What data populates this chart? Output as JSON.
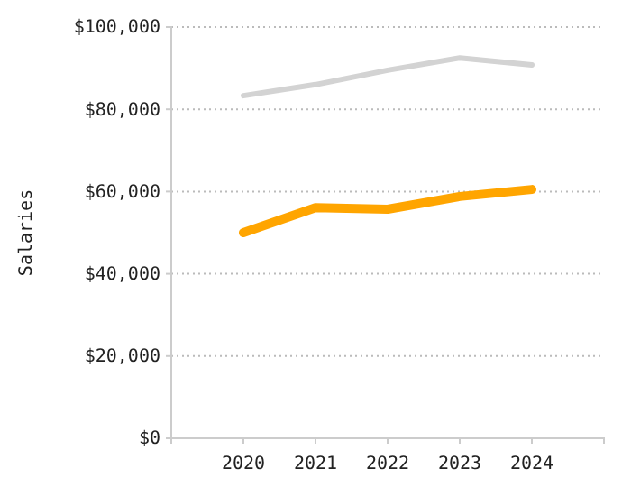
{
  "chart_data": {
    "type": "line",
    "ylabel": "Salaries",
    "x": [
      2020,
      2021,
      2022,
      2023,
      2024
    ],
    "series": [
      {
        "color": "#d3d3d3",
        "values": [
          83300,
          86000,
          89500,
          92500,
          90800
        ]
      },
      {
        "color": "#ffa500",
        "values": [
          50000,
          56100,
          55700,
          58800,
          60500
        ]
      }
    ],
    "xlim": [
      2019,
      2025
    ],
    "xticks": [
      2020,
      2021,
      2022,
      2023,
      2024
    ],
    "ylim": [
      0,
      100000
    ],
    "yticks": [
      {
        "value": 0,
        "label": "$0"
      },
      {
        "value": 20000,
        "label": "$20,000"
      },
      {
        "value": 40000,
        "label": "$40,000"
      },
      {
        "value": 60000,
        "label": "$60,000"
      },
      {
        "value": 80000,
        "label": "$80,000"
      },
      {
        "value": 100000,
        "label": "$100,000"
      }
    ],
    "grid": "y",
    "marker": "none",
    "line_style": "solid"
  }
}
